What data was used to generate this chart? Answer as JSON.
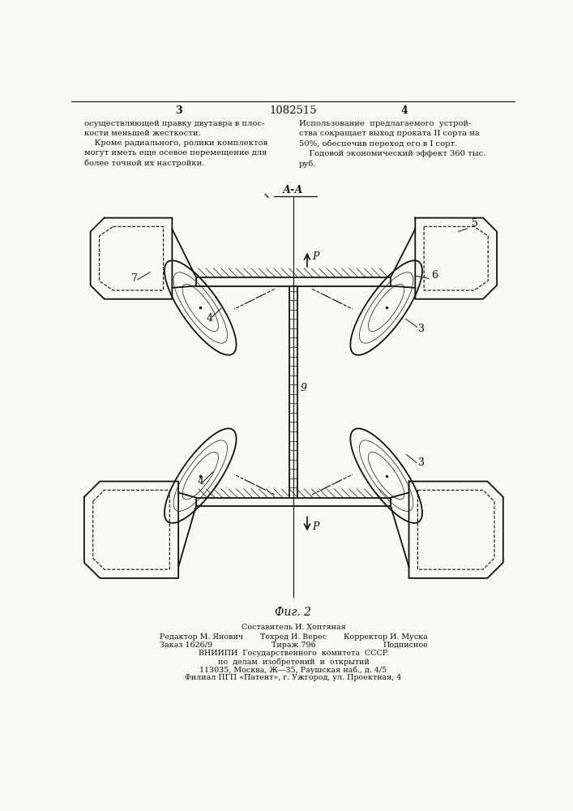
{
  "title": "1082515",
  "page_left": "3",
  "page_right": "4",
  "text_left": "осуществляющей правку двутавра в плос-\nкости меньшей жесткости.\n    Кроме радиального, ролики комплектов\nмогут иметь еще осевое перемещение для\nболее точной их настройки.",
  "text_right": "Использование  предлагаемого  устрой-\nства сокращает выход проката II сорта на\n50%, обеспечив переход его в I сорт.\n    Годовой экономический эффект 360 тыс.\nруб.",
  "section_label": "А-А",
  "fig_label": "Фиг. 2",
  "bottom_text": [
    [
      "center",
      "Составитель И. Хоптяная"
    ],
    [
      "left",
      "Редактор М. Янович"
    ],
    [
      "center",
      "Техред И. Верес"
    ],
    [
      "right",
      "Корректор И. Муска"
    ],
    [
      "left",
      "Заказ 1626/9"
    ],
    [
      "center",
      "Тираж 796"
    ],
    [
      "right",
      "Подписное"
    ],
    [
      "center",
      "ВНИИПИ  Государственного  комитета  СССР"
    ],
    [
      "center",
      "по  делам  изобретений  и  открытий"
    ],
    [
      "center",
      "113035, Москва, Ж—35, Раушская наб., д. 4/5"
    ],
    [
      "center",
      "Филиал ПГП «Патент», г. Ужгород, ул. Проектная, 4"
    ]
  ],
  "bg_color": "#f8f8f4",
  "lc": "#111111"
}
